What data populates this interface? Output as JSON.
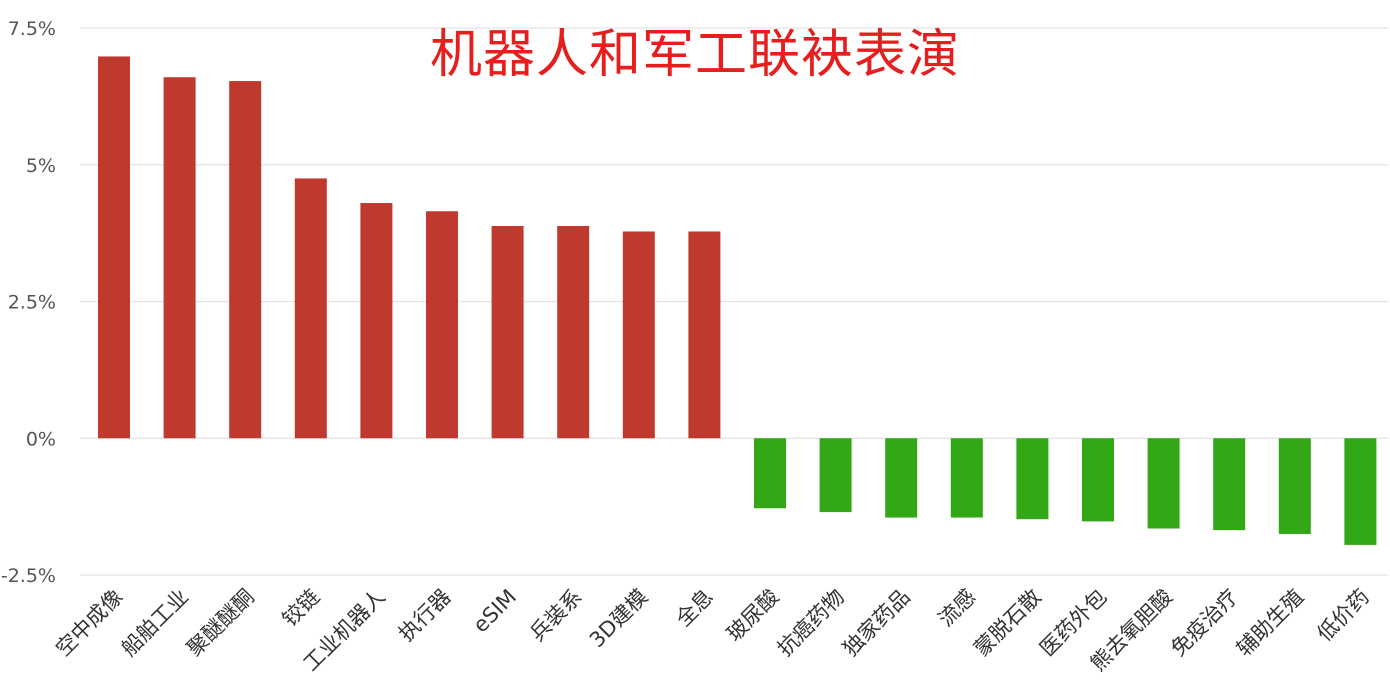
{
  "chart_data": {
    "type": "bar",
    "title": "机器人和军工联袂表演",
    "categories": [
      "空中成像",
      "船舶工业",
      "聚醚醚酮",
      "铰链",
      "工业机器人",
      "执行器",
      "eSIM",
      "兵装系",
      "3D建模",
      "全息",
      "玻尿酸",
      "抗癌药物",
      "独家药品",
      "流感",
      "蒙脱石散",
      "医药外包",
      "熊去氧胆酸",
      "免疫治疗",
      "辅助生殖",
      "低价药"
    ],
    "values": [
      6.98,
      6.6,
      6.53,
      4.75,
      4.3,
      4.15,
      3.88,
      3.88,
      3.78,
      3.78,
      -1.28,
      -1.35,
      -1.45,
      -1.45,
      -1.48,
      -1.52,
      -1.65,
      -1.68,
      -1.75,
      -1.95
    ],
    "ylim": [
      -2.5,
      7.5
    ],
    "yticks": [
      "7.5%",
      "5%",
      "2.5%",
      "0%",
      "-2.5%"
    ],
    "ytick_values": [
      7.5,
      5,
      2.5,
      0,
      -2.5
    ],
    "grid": true,
    "xlabel": "",
    "ylabel": "",
    "colors": {
      "positive": "#c0392f",
      "negative": "#32a817",
      "title": "#e61e1e",
      "grid": "#e3e3e3",
      "tick_text": "#555555",
      "category_text": "#333333"
    }
  }
}
